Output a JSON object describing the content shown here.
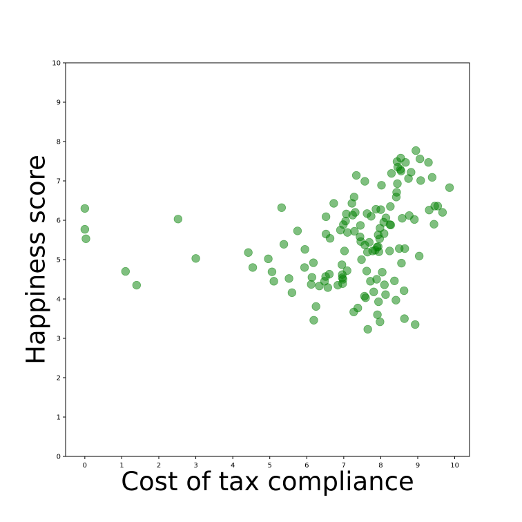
{
  "chart_data": {
    "type": "scatter",
    "title": "",
    "xlabel": "Cost of tax compliance",
    "ylabel": "Happiness score",
    "xlim": [
      -0.52,
      10.4
    ],
    "ylim": [
      0,
      10
    ],
    "xticks": [
      0,
      1,
      2,
      3,
      4,
      5,
      6,
      7,
      8,
      9,
      10
    ],
    "yticks": [
      0,
      1,
      2,
      3,
      4,
      5,
      6,
      7,
      8,
      9,
      10
    ],
    "grid": false,
    "legend": "none",
    "marker_color": "#008000",
    "marker_alpha": 0.5,
    "series": [
      {
        "points": [
          [
            0,
            6.3
          ],
          [
            0,
            5.77
          ],
          [
            0.03,
            5.53
          ],
          [
            1.1,
            4.7
          ],
          [
            1.4,
            4.35
          ],
          [
            2.52,
            6.03
          ],
          [
            3.0,
            5.03
          ],
          [
            4.42,
            5.18
          ],
          [
            4.54,
            4.8
          ],
          [
            4.96,
            5.02
          ],
          [
            5.06,
            4.69
          ],
          [
            5.11,
            4.45
          ],
          [
            5.32,
            6.32
          ],
          [
            5.38,
            5.39
          ],
          [
            5.52,
            4.52
          ],
          [
            5.6,
            4.16
          ],
          [
            5.75,
            5.73
          ],
          [
            5.94,
            4.8
          ],
          [
            5.95,
            5.26
          ],
          [
            6.12,
            4.37
          ],
          [
            6.14,
            4.55
          ],
          [
            6.18,
            4.92
          ],
          [
            6.19,
            3.46
          ],
          [
            6.25,
            3.81
          ],
          [
            6.34,
            4.33
          ],
          [
            6.48,
            4.45
          ],
          [
            6.51,
            4.57
          ],
          [
            6.52,
            6.09
          ],
          [
            6.52,
            5.65
          ],
          [
            6.57,
            4.29
          ],
          [
            6.61,
            4.63
          ],
          [
            6.63,
            5.54
          ],
          [
            6.73,
            6.43
          ],
          [
            6.84,
            4.35
          ],
          [
            6.91,
            5.75
          ],
          [
            6.95,
            4.87
          ],
          [
            6.96,
            4.62
          ],
          [
            6.96,
            4.54
          ],
          [
            6.97,
            4.39
          ],
          [
            6.98,
            4.5
          ],
          [
            6.99,
            5.89
          ],
          [
            7.02,
            5.22
          ],
          [
            7.05,
            5.98
          ],
          [
            7.07,
            6.16
          ],
          [
            7.09,
            4.72
          ],
          [
            7.1,
            5.69
          ],
          [
            7.22,
            6.43
          ],
          [
            7.24,
            6.13
          ],
          [
            7.27,
            3.67
          ],
          [
            7.28,
            6.59
          ],
          [
            7.29,
            5.72
          ],
          [
            7.31,
            6.2
          ],
          [
            7.34,
            7.14
          ],
          [
            7.38,
            3.77
          ],
          [
            7.44,
            5.58
          ],
          [
            7.45,
            5.87
          ],
          [
            7.46,
            5.46
          ],
          [
            7.48,
            5.0
          ],
          [
            7.56,
            4.07
          ],
          [
            7.57,
            5.37
          ],
          [
            7.57,
            6.99
          ],
          [
            7.59,
            4.03
          ],
          [
            7.62,
            4.71
          ],
          [
            7.63,
            6.17
          ],
          [
            7.64,
            5.19
          ],
          [
            7.65,
            3.23
          ],
          [
            7.69,
            5.44
          ],
          [
            7.72,
            4.45
          ],
          [
            7.74,
            6.1
          ],
          [
            7.78,
            5.22
          ],
          [
            7.81,
            4.18
          ],
          [
            7.85,
            5.24
          ],
          [
            7.87,
            6.28
          ],
          [
            7.89,
            4.5
          ],
          [
            7.9,
            5.32
          ],
          [
            7.91,
            3.6
          ],
          [
            7.93,
            5.33
          ],
          [
            7.93,
            5.63
          ],
          [
            7.94,
            3.93
          ],
          [
            7.95,
            5.2
          ],
          [
            7.97,
            5.53
          ],
          [
            7.98,
            5.8
          ],
          [
            7.98,
            3.42
          ],
          [
            8.0,
            6.27
          ],
          [
            8.02,
            6.89
          ],
          [
            8.04,
            4.68
          ],
          [
            8.08,
            5.95
          ],
          [
            8.09,
            5.66
          ],
          [
            8.1,
            4.36
          ],
          [
            8.13,
            4.11
          ],
          [
            8.14,
            6.06
          ],
          [
            8.24,
            5.22
          ],
          [
            8.25,
            5.89
          ],
          [
            8.26,
            6.35
          ],
          [
            8.27,
            5.88
          ],
          [
            8.29,
            7.19
          ],
          [
            8.37,
            4.46
          ],
          [
            8.41,
            3.97
          ],
          [
            8.42,
            6.59
          ],
          [
            8.43,
            6.71
          ],
          [
            8.44,
            7.49
          ],
          [
            8.45,
            6.93
          ],
          [
            8.46,
            7.35
          ],
          [
            8.5,
            5.28
          ],
          [
            8.53,
            7.29
          ],
          [
            8.54,
            7.58
          ],
          [
            8.55,
            7.25
          ],
          [
            8.56,
            4.91
          ],
          [
            8.58,
            6.05
          ],
          [
            8.63,
            4.21
          ],
          [
            8.64,
            3.5
          ],
          [
            8.65,
            5.28
          ],
          [
            8.67,
            7.47
          ],
          [
            8.75,
            7.06
          ],
          [
            8.77,
            6.12
          ],
          [
            8.82,
            7.22
          ],
          [
            8.91,
            6.02
          ],
          [
            8.93,
            3.35
          ],
          [
            8.95,
            7.77
          ],
          [
            9.04,
            5.09
          ],
          [
            9.06,
            7.56
          ],
          [
            9.08,
            7.01
          ],
          [
            9.29,
            7.47
          ],
          [
            9.31,
            6.26
          ],
          [
            9.39,
            7.09
          ],
          [
            9.44,
            5.9
          ],
          [
            9.46,
            6.36
          ],
          [
            9.54,
            6.36
          ],
          [
            9.67,
            6.2
          ],
          [
            9.86,
            6.83
          ]
        ]
      }
    ]
  }
}
